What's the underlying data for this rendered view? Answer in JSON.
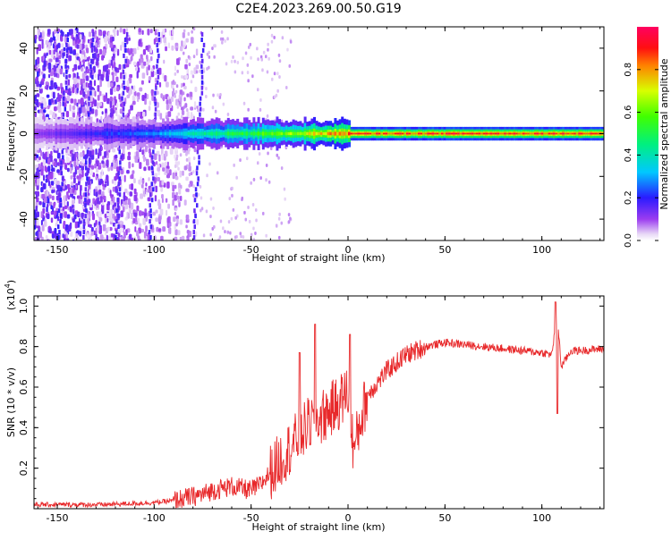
{
  "title": "C2E4.2023.269.00.50.G19",
  "colors": {
    "snr_line": "#e8282a",
    "axis": "#000000",
    "spectrogram_bg": "#ffffff"
  },
  "chart_data": [
    {
      "type": "heatmap",
      "title": "C2E4.2023.269.00.50.G19",
      "xlabel": "Height of straight line (km)",
      "ylabel": "Frequency (Hz)",
      "xlim": [
        -162,
        132
      ],
      "ylim": [
        -50,
        50
      ],
      "xticks": [
        -150,
        -100,
        -50,
        0,
        50,
        100
      ],
      "yticks": [
        -40,
        -20,
        0,
        20,
        40
      ],
      "colorbar": {
        "label": "Normalized spectral amplitude",
        "range": [
          0,
          1
        ],
        "ticks": [
          "0.0",
          "0.2",
          "0.4",
          "0.6",
          "0.8"
        ],
        "tick_values": [
          0.0,
          0.2,
          0.4,
          0.6,
          0.8
        ],
        "colormap": "rainbow (white-violet-blue-cyan-green-yellow-red-magenta)"
      },
      "carrier_frequency_hz": 0,
      "ridge": [
        {
          "x": -150,
          "amplitude": 0.15
        },
        {
          "x": -100,
          "amplitude": 0.3
        },
        {
          "x": -75,
          "amplitude": 0.45
        },
        {
          "x": -50,
          "amplitude": 0.55
        },
        {
          "x": -25,
          "amplitude": 0.7
        },
        {
          "x": 0,
          "amplitude": 0.9
        },
        {
          "x": 50,
          "amplitude": 0.95
        },
        {
          "x": 100,
          "amplitude": 0.95
        },
        {
          "x": 130,
          "amplitude": 0.95
        }
      ]
    },
    {
      "type": "line",
      "xlabel": "Height of straight line (km)",
      "ylabel": "SNR (10 * v/v)",
      "y_multiplier": "(x10",
      "y_multiplier_exp": "4",
      "y_multiplier_close": ")",
      "xlim": [
        -162,
        132
      ],
      "ylim": [
        0.0,
        1.05
      ],
      "xticks": [
        -150,
        -100,
        -50,
        0,
        50,
        100
      ],
      "yticks": [
        0.2,
        0.4,
        0.6,
        0.8,
        1.0
      ],
      "series": [
        {
          "x": [
            -162,
            -150,
            -125,
            -100,
            -90,
            -80,
            -75,
            -70,
            -65,
            -60,
            -55,
            -50,
            -45,
            -40,
            -35,
            -30,
            -25,
            -20,
            -15,
            -10,
            -5,
            0,
            3,
            6,
            10,
            15,
            20,
            25,
            30,
            40,
            50,
            60,
            70,
            80,
            90,
            100,
            105,
            108,
            110,
            115,
            120,
            132
          ],
          "y": [
            0.02,
            0.02,
            0.02,
            0.03,
            0.04,
            0.06,
            0.07,
            0.09,
            0.1,
            0.11,
            0.1,
            0.09,
            0.12,
            0.18,
            0.24,
            0.3,
            0.36,
            0.42,
            0.44,
            0.48,
            0.52,
            0.58,
            0.28,
            0.42,
            0.56,
            0.62,
            0.68,
            0.72,
            0.76,
            0.8,
            0.82,
            0.81,
            0.8,
            0.79,
            0.78,
            0.77,
            0.76,
            0.95,
            0.7,
            0.78,
            0.78,
            0.79
          ]
        }
      ],
      "spikes": [
        {
          "x": -25,
          "y": 0.77
        },
        {
          "x": -17,
          "y": 0.91
        },
        {
          "x": 1,
          "y": 0.86
        },
        {
          "x": 107,
          "y": 1.02
        },
        {
          "x": 108,
          "y": 0.47
        }
      ]
    }
  ]
}
